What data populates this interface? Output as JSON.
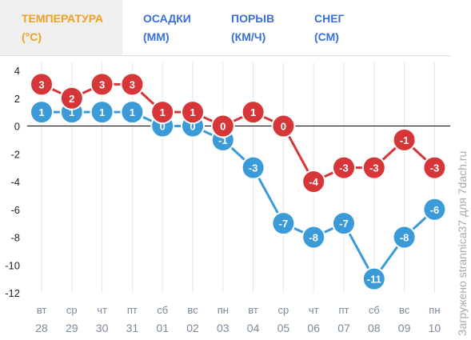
{
  "tabs": [
    {
      "line1": "ТЕМПЕРАТУРА",
      "line2": "(°C)",
      "active": true
    },
    {
      "line1": "ОСАДКИ",
      "line2": "(ММ)",
      "active": false
    },
    {
      "line1": "ПОРЫВ",
      "line2": "(КМ/Ч)",
      "active": false
    },
    {
      "line1": "СНЕГ",
      "line2": "(СМ)",
      "active": false
    }
  ],
  "watermark": "Загружено strannica37 для 7dach.ru",
  "colors": {
    "red": "#d63638",
    "blue": "#3a9bd8",
    "grid": "#e6e6e6",
    "zero": "#000000",
    "axis_text": "#222222",
    "day_text": "#7b8a99"
  },
  "chart_data": {
    "type": "line",
    "days": [
      "вт",
      "ср",
      "чт",
      "пт",
      "сб",
      "вс",
      "пн",
      "вт",
      "ср",
      "чт",
      "пт",
      "сб",
      "вс",
      "пн"
    ],
    "dates": [
      "28",
      "29",
      "30",
      "31",
      "01",
      "02",
      "03",
      "04",
      "05",
      "06",
      "07",
      "08",
      "09",
      "10"
    ],
    "series": [
      {
        "color": "#d63638",
        "values": [
          3,
          2,
          3,
          3,
          1,
          1,
          0,
          1,
          0,
          -4,
          -3,
          -3,
          -1,
          -3
        ]
      },
      {
        "color": "#3a9bd8",
        "values": [
          1,
          1,
          1,
          1,
          0,
          0,
          -1,
          -3,
          -7,
          -8,
          -7,
          -11,
          -8,
          -6
        ]
      }
    ],
    "yticks": [
      4,
      2,
      0,
      -2,
      -4,
      -6,
      -8,
      -10,
      -12
    ],
    "ylim": [
      -12,
      4
    ],
    "grid": "vertical"
  }
}
